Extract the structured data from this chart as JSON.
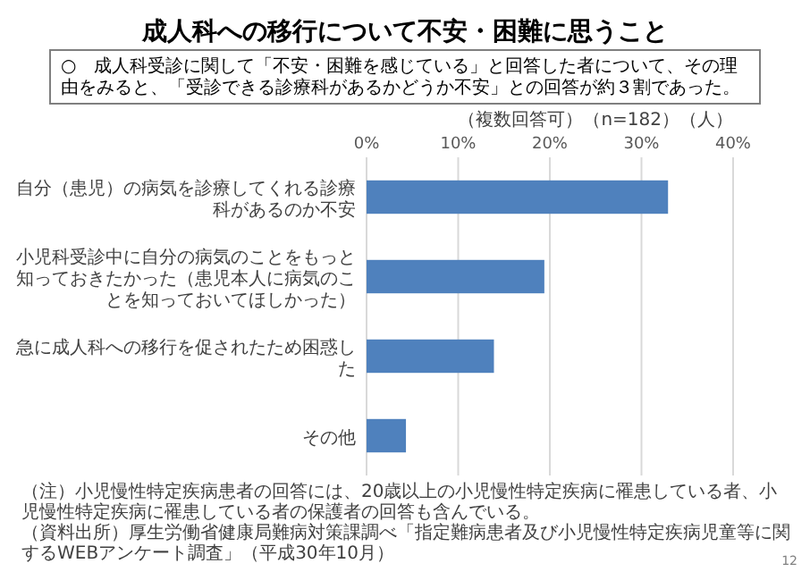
{
  "chart_data": {
    "type": "bar",
    "orientation": "horizontal",
    "title": "成人科への移行について不安・困難に思うこと",
    "subtitle": "○　成人科受診に関して「不安・困難を感じている」と回答した者について、その理由をみると、「受診できる診療科があるかどうか不安」との回答が約３割であった。",
    "categories": [
      "自分（患児）の病気を診療してくれる診療科があるのか不安",
      "小児科受診中に自分の病気のことをもっと知っておきたかった（患児本人に病気のことを知っておいてほしかった）",
      "急に成人科への移行を促されたため困惑した",
      "その他"
    ],
    "values": [
      32.9,
      19.4,
      13.9,
      4.3
    ],
    "color": "#4f81bd",
    "xlim": [
      0,
      40
    ],
    "xticks": [
      {
        "value": 0,
        "label": "0%"
      },
      {
        "value": 10,
        "label": "10%"
      },
      {
        "value": 20,
        "label": "20%"
      },
      {
        "value": 30,
        "label": "30%"
      },
      {
        "value": 40,
        "label": "40%"
      }
    ],
    "grid": "x",
    "annotations": [
      "（複数回答可）（n=182）（人）",
      "（注）小児慢性特定疾病患者の回答には、20歳以上の小児慢性特定疾病に罹患している者、小児慢性特定疾病に罹患している者の保護者の回答も含んでいる。",
      "（資料出所）厚生労働省健康局難病対策課調べ「指定難病患者及び小児慢性特定疾病児童等に関するWEBアンケート調査」（平成30年10月）",
      "12"
    ]
  }
}
